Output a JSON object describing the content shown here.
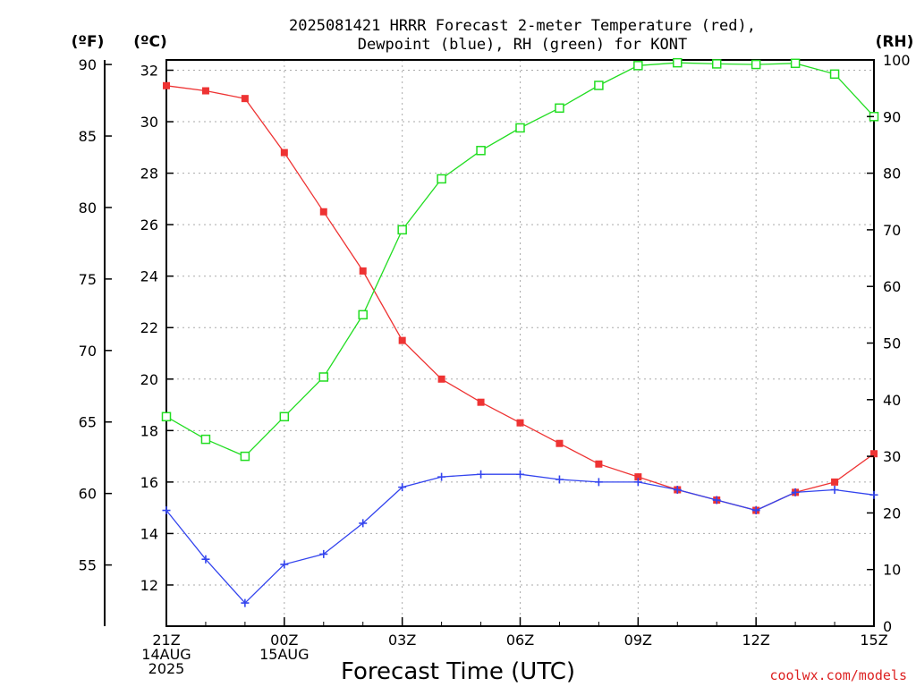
{
  "chart_data": {
    "type": "line",
    "title_line1": "2025081421 HRRR Forecast 2-meter Temperature (red),",
    "title_line2": "Dewpoint (blue), RH (green) for KONT",
    "xlabel": "Forecast Time (UTC)",
    "credit": "coolwx.com/models",
    "units": {
      "fahrenheit": "(ºF)",
      "celsius": "(ºC)",
      "rh": "(RH)"
    },
    "x_hours": [
      0,
      1,
      2,
      3,
      4,
      5,
      6,
      7,
      8,
      9,
      10,
      11,
      12,
      13,
      14,
      15,
      16,
      17,
      18
    ],
    "x_ticks": [
      {
        "hour": 0,
        "lines": [
          "21Z",
          "14AUG",
          "2025"
        ]
      },
      {
        "hour": 3,
        "lines": [
          "00Z",
          "15AUG"
        ]
      },
      {
        "hour": 6,
        "lines": [
          "03Z"
        ]
      },
      {
        "hour": 9,
        "lines": [
          "06Z"
        ]
      },
      {
        "hour": 12,
        "lines": [
          "09Z"
        ]
      },
      {
        "hour": 15,
        "lines": [
          "12Z"
        ]
      },
      {
        "hour": 18,
        "lines": [
          "15Z"
        ]
      }
    ],
    "y_celsius": {
      "range": [
        10.4,
        32.4
      ],
      "ticks": [
        "12",
        "14",
        "16",
        "18",
        "20",
        "22",
        "24",
        "26",
        "28",
        "30",
        "32"
      ]
    },
    "y_fahrenheit": {
      "ticks": [
        "55",
        "60",
        "65",
        "70",
        "75",
        "80",
        "85",
        "90"
      ]
    },
    "y_rh": {
      "range": [
        0,
        100
      ],
      "ticks": [
        "0",
        "10",
        "20",
        "30",
        "40",
        "50",
        "60",
        "70",
        "80",
        "90",
        "100"
      ]
    },
    "grid": true,
    "series": [
      {
        "name": "Temperature",
        "axis": "celsius",
        "color": "#ee3333",
        "marker": "filled-square",
        "values": [
          31.4,
          31.2,
          30.9,
          28.8,
          26.5,
          24.2,
          21.5,
          20.0,
          19.1,
          18.3,
          17.5,
          16.7,
          16.2,
          15.7,
          15.3,
          14.9,
          15.6,
          16.0,
          17.1
        ]
      },
      {
        "name": "Dewpoint",
        "axis": "celsius",
        "color": "#3344ee",
        "marker": "plus",
        "values": [
          14.9,
          13.0,
          11.3,
          12.8,
          13.2,
          14.4,
          15.8,
          16.2,
          16.3,
          16.3,
          16.1,
          16.0,
          16.0,
          15.7,
          15.3,
          14.9,
          15.6,
          15.7,
          15.5
        ]
      },
      {
        "name": "RH",
        "axis": "rh",
        "color": "#22dd22",
        "marker": "open-square",
        "values": [
          37,
          33,
          30,
          37,
          44,
          55,
          70,
          79,
          84,
          88,
          91.5,
          95.5,
          99,
          99.5,
          99.3,
          99.2,
          99.4,
          97.5,
          90
        ]
      }
    ]
  }
}
